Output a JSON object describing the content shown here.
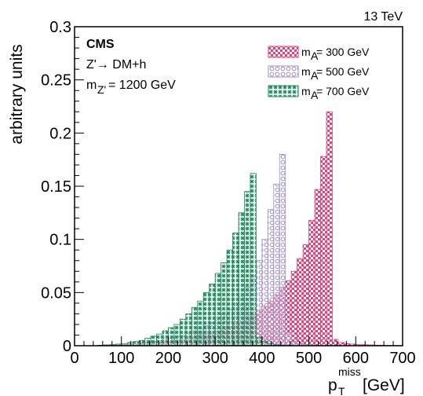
{
  "chart_data": {
    "type": "histogram",
    "xlabel_main": "p",
    "xlabel_sup": "miss",
    "xlabel_sub": "T",
    "xlabel_unit": "[GeV]",
    "ylabel": "arbitrary units",
    "top_right_label": "13 TeV",
    "annotations": {
      "experiment": "CMS",
      "process": "Z'→ DM+h",
      "mass_prefix": "m",
      "mass_sub": "Z'",
      "mass_value": " = 1200 GeV"
    },
    "xlim": [
      0,
      700
    ],
    "ylim": [
      0,
      0.3
    ],
    "x_ticks": [
      {
        "v": 0,
        "label": "0"
      },
      {
        "v": 100,
        "label": "100"
      },
      {
        "v": 200,
        "label": "200"
      },
      {
        "v": 300,
        "label": "300"
      },
      {
        "v": 400,
        "label": "400"
      },
      {
        "v": 500,
        "label": "500"
      },
      {
        "v": 600,
        "label": "600"
      },
      {
        "v": 700,
        "label": "700"
      }
    ],
    "y_ticks": [
      {
        "v": 0,
        "label": "0"
      },
      {
        "v": 0.05,
        "label": "0.05"
      },
      {
        "v": 0.1,
        "label": "0.1"
      },
      {
        "v": 0.15,
        "label": "0.15"
      },
      {
        "v": 0.2,
        "label": "0.2"
      },
      {
        "v": 0.25,
        "label": "0.25"
      },
      {
        "v": 0.3,
        "label": "0.3"
      }
    ],
    "bin_width": 12.5,
    "bin_edges_start": 0,
    "series": [
      {
        "label_prefix": "m",
        "label_sub": "A",
        "label_value": " = 300 GeV",
        "color": "#e8417a",
        "pattern": "checker",
        "values": [
          0,
          0,
          0,
          0,
          0,
          0,
          0,
          0,
          0.001,
          0.001,
          0.0015,
          0.002,
          0.002,
          0.003,
          0.003,
          0.004,
          0.004,
          0.005,
          0.006,
          0.007,
          0.008,
          0.01,
          0.011,
          0.012,
          0.014,
          0.016,
          0.018,
          0.02,
          0.023,
          0.026,
          0.029,
          0.033,
          0.037,
          0.042,
          0.048,
          0.055,
          0.061,
          0.07,
          0.082,
          0.095,
          0.118,
          0.147,
          0.178,
          0.22,
          0.006,
          0.003,
          0.002,
          0.0015,
          0.001,
          0.001,
          0.0008,
          0.0005,
          0.0005,
          0.0003,
          0.0002,
          0.0002
        ]
      },
      {
        "label_prefix": "m",
        "label_sub": "A",
        "label_value": " = 500 GeV",
        "color": "#9c8cc8",
        "pattern": "circles",
        "values": [
          0,
          0,
          0,
          0,
          0,
          0,
          0.0005,
          0.001,
          0.001,
          0.0015,
          0.002,
          0.0025,
          0.003,
          0.004,
          0.005,
          0.006,
          0.007,
          0.009,
          0.01,
          0.012,
          0.014,
          0.016,
          0.019,
          0.022,
          0.026,
          0.03,
          0.034,
          0.04,
          0.046,
          0.055,
          0.066,
          0.08,
          0.1,
          0.128,
          0.152,
          0.18,
          0.012,
          0.004,
          0.002,
          0.001,
          0.0008,
          0.0005,
          0.0003,
          0.0002,
          0.0001,
          0,
          0,
          0,
          0,
          0,
          0,
          0,
          0,
          0,
          0,
          0
        ]
      },
      {
        "label_prefix": "m",
        "label_sub": "A",
        "label_value": " = 700 GeV",
        "color": "#1c8a5c",
        "pattern": "stars",
        "values": [
          0,
          0,
          0,
          0,
          0.0005,
          0.0008,
          0.001,
          0.0015,
          0.002,
          0.003,
          0.004,
          0.005,
          0.007,
          0.009,
          0.011,
          0.014,
          0.017,
          0.02,
          0.025,
          0.03,
          0.036,
          0.042,
          0.05,
          0.058,
          0.068,
          0.078,
          0.09,
          0.106,
          0.125,
          0.145,
          0.162,
          0.008,
          0.004,
          0.002,
          0.001,
          0.0005,
          0.0003,
          0,
          0,
          0,
          0,
          0,
          0,
          0,
          0,
          0,
          0,
          0,
          0,
          0,
          0,
          0,
          0,
          0,
          0,
          0
        ]
      }
    ]
  }
}
